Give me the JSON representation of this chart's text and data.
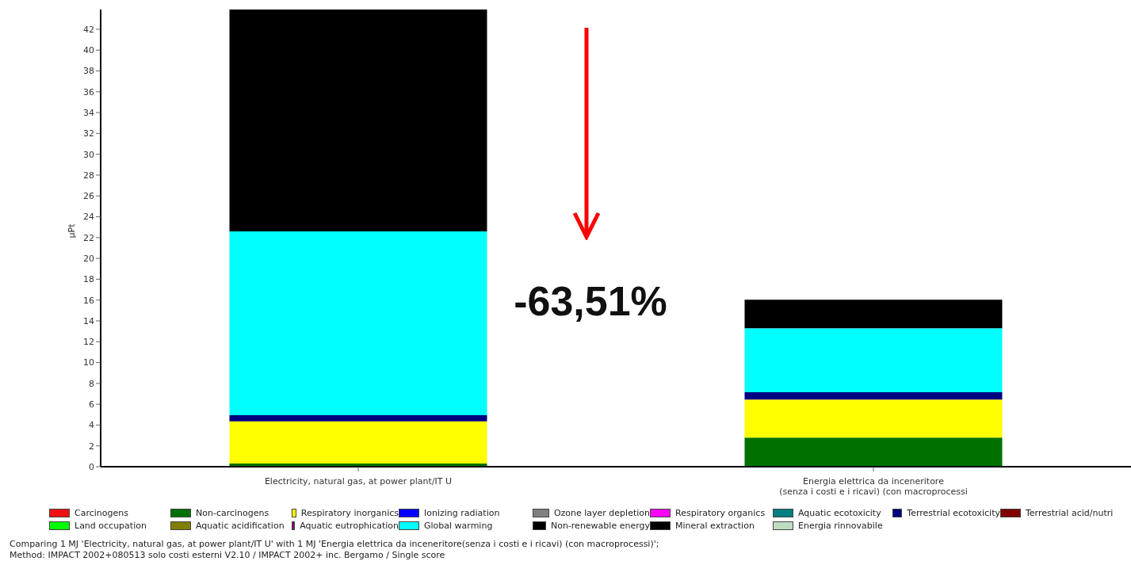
{
  "chart_data": {
    "type": "bar",
    "stacked": true,
    "ylabel": "µPt",
    "categories": [
      "Electricity, natural gas, at power plant/IT U",
      "Energia elettrica da inceneritore\n(senza i costi e i ricavi)  (con macroprocessi"
    ],
    "ylim": [
      0,
      43.9
    ],
    "yticks": [
      0,
      2,
      4,
      6,
      8,
      10,
      12,
      14,
      16,
      18,
      20,
      22,
      24,
      26,
      28,
      30,
      32,
      34,
      36,
      38,
      40,
      42
    ],
    "legend": "bottom",
    "series": [
      {
        "name": "Carcinogens",
        "color": "#ee1111",
        "values": [
          0,
          0
        ]
      },
      {
        "name": "Non-carcinogens",
        "color": "#007000",
        "values": [
          0.3,
          2.8
        ]
      },
      {
        "name": "Respiratory inorganics",
        "color": "#ffff00",
        "values": [
          4.05,
          3.65
        ]
      },
      {
        "name": "Ionizing radiation",
        "color": "#0000ff",
        "values": [
          0,
          0
        ]
      },
      {
        "name": "Ozone layer depletion",
        "color": "#808080",
        "values": [
          0,
          0
        ]
      },
      {
        "name": "Respiratory organics",
        "color": "#ff00ff",
        "values": [
          0,
          0
        ]
      },
      {
        "name": "Aquatic ecotoxicity",
        "color": "#008080",
        "values": [
          0,
          0
        ]
      },
      {
        "name": "Terrestrial ecotoxicity",
        "color": "#000080",
        "values": [
          0.6,
          0.7
        ]
      },
      {
        "name": "Terrestrial acid/nutri",
        "color": "#800000",
        "values": [
          0,
          0
        ]
      },
      {
        "name": "Land occupation",
        "color": "#00ff00",
        "values": [
          0,
          0
        ]
      },
      {
        "name": "Aquatic acidification",
        "color": "#808000",
        "values": [
          0,
          0
        ]
      },
      {
        "name": "Aquatic eutrophication",
        "color": "#800080",
        "values": [
          0,
          0
        ]
      },
      {
        "name": "Global warming",
        "color": "#00ffff",
        "values": [
          17.65,
          6.15
        ]
      },
      {
        "name": "Non-renewable energy",
        "color": "#000000",
        "values": [
          21.3,
          2.73
        ]
      },
      {
        "name": "Mineral extraction",
        "color": "#000000",
        "values": [
          0,
          0
        ]
      },
      {
        "name": "Energia rinnovabile",
        "color": "#c0dcc0",
        "values": [
          0,
          0
        ]
      }
    ],
    "annotations": [
      "-63,51%",
      "Comparing 1 MJ 'Electricity, natural gas, at power plant/IT U' with 1 MJ 'Energia elettrica da inceneritore(senza i costi e i ricavi)  (con macroprocessi)';",
      "Method: IMPACT 2002+080513 solo costi esterni V2.10 / IMPACT 2002+ inc. Bergamo / Single score"
    ]
  }
}
